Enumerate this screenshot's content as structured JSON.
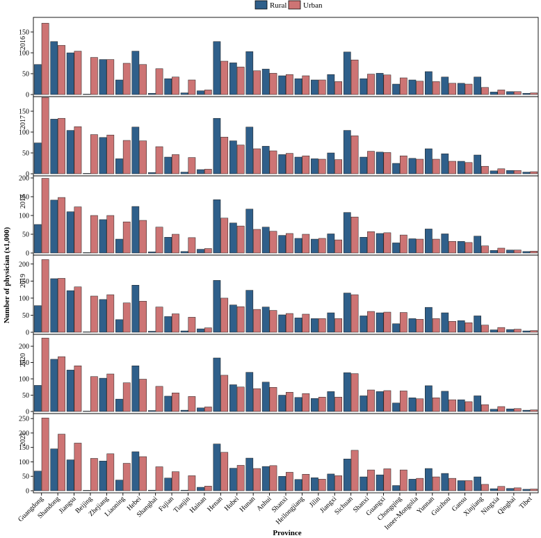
{
  "chart_data": {
    "type": "bar",
    "title": "",
    "xlabel": "Province",
    "ylabel": "Number of physician (x1,000)",
    "legend": {
      "position": "top-center",
      "entries": [
        "Rural",
        "Urban"
      ]
    },
    "colors": {
      "Rural": "#2f5f8a",
      "Urban": "#cd7474"
    },
    "categories": [
      "Guangdong",
      "Shandong",
      "Jiangsu",
      "Beijing",
      "Zhejiang",
      "Liaoning",
      "Hebei",
      "Shanghai",
      "Fujian",
      "Tianjin",
      "Hainan",
      "Henan",
      "Hubei",
      "Hunan",
      "Anhui",
      "Shanxi",
      "Heilongjiang",
      "Jilin",
      "Jiangxi",
      "Sichuan",
      "Shanxi",
      "Guangxi",
      "Chongqing",
      "Inner-Mongolia",
      "Yunnan",
      "Guizhou",
      "Gansu",
      "Xinjiang",
      "Ningxia",
      "Qinghai",
      "Tibet"
    ],
    "panels": [
      {
        "year": "2016",
        "ylim": [
          0,
          180
        ],
        "yticks": [
          0,
          50,
          100,
          150
        ],
        "series": [
          {
            "name": "Rural",
            "values": [
              72,
              127,
              100,
              1,
              84,
              35,
              104,
              3,
              38,
              4,
              9,
              127,
              76,
              103,
              61,
              45,
              38,
              35,
              48,
              102,
              38,
              51,
              25,
              35,
              55,
              42,
              27,
              42,
              6,
              7,
              3
            ]
          },
          {
            "name": "Urban",
            "values": [
              171,
              118,
              104,
              89,
              84,
              75,
              72,
              62,
              42,
              35,
              11,
              80,
              66,
              57,
              51,
              48,
              45,
              35,
              31,
              83,
              49,
              47,
              40,
              32,
              31,
              27,
              25,
              17,
              11,
              7,
              4
            ]
          }
        ]
      },
      {
        "year": "2017",
        "ylim": [
          0,
          180
        ],
        "yticks": [
          0,
          50,
          100,
          150
        ],
        "series": [
          {
            "name": "Rural",
            "values": [
              74,
              131,
              104,
              1,
              87,
              36,
              112,
              3,
              40,
              4,
              10,
              133,
              79,
              112,
              66,
              46,
              40,
              36,
              50,
              104,
              40,
              52,
              25,
              37,
              60,
              48,
              30,
              45,
              7,
              8,
              4
            ]
          },
          {
            "name": "Urban",
            "values": [
              183,
              133,
              113,
              94,
              93,
              80,
              79,
              65,
              46,
              39,
              11,
              88,
              69,
              60,
              55,
              49,
              43,
              35,
              34,
              91,
              54,
              51,
              43,
              35,
              35,
              30,
              27,
              18,
              12,
              8,
              5
            ]
          }
        ]
      },
      {
        "year": "2018",
        "ylim": [
          0,
          200
        ],
        "yticks": [
          0,
          50,
          100,
          150,
          200
        ],
        "series": [
          {
            "name": "Rural",
            "values": [
              76,
              141,
              110,
              1,
              89,
              37,
              124,
              3,
              42,
              4,
              10,
              142,
              80,
              117,
              69,
              47,
              39,
              37,
              51,
              108,
              42,
              52,
              27,
              38,
              64,
              51,
              31,
              45,
              7,
              8,
              4
            ]
          },
          {
            "name": "Urban",
            "values": [
              199,
              148,
              123,
              100,
              100,
              83,
              87,
              69,
              50,
              41,
              12,
              93,
              72,
              63,
              58,
              52,
              50,
              39,
              35,
              96,
              57,
              54,
              48,
              37,
              37,
              31,
              28,
              19,
              13,
              8,
              5
            ]
          }
        ]
      },
      {
        "year": "2019",
        "ylim": [
          0,
          220
        ],
        "yticks": [
          0,
          50,
          100,
          150,
          200
        ],
        "series": [
          {
            "name": "Rural",
            "values": [
              78,
              157,
              122,
              1,
              96,
              37,
              138,
              3,
              46,
              4,
              10,
              152,
              80,
              123,
              74,
              51,
              42,
              40,
              57,
              115,
              48,
              57,
              25,
              40,
              73,
              57,
              34,
              48,
              7,
              8,
              4
            ]
          },
          {
            "name": "Urban",
            "values": [
              213,
              158,
              133,
              106,
              110,
              86,
              91,
              74,
              54,
              44,
              13,
              100,
              75,
              67,
              64,
              55,
              53,
              40,
              40,
              110,
              61,
              59,
              58,
              38,
              40,
              32,
              28,
              21,
              14,
              9,
              5
            ]
          }
        ]
      },
      {
        "year": "2020",
        "ylim": [
          0,
          230
        ],
        "yticks": [
          0,
          50,
          100,
          150,
          200
        ],
        "series": [
          {
            "name": "Rural",
            "values": [
              80,
              160,
              127,
              1,
              102,
              38,
              140,
              3,
              47,
              4,
              11,
              164,
              82,
              120,
              90,
              50,
              43,
              40,
              61,
              119,
              48,
              61,
              26,
              42,
              79,
              62,
              36,
              48,
              7,
              8,
              4
            ]
          },
          {
            "name": "Urban",
            "values": [
              225,
              168,
              140,
              107,
              115,
              88,
              99,
              77,
              57,
              46,
              14,
              111,
              75,
              70,
              74,
              59,
              55,
              44,
              44,
              116,
              66,
              64,
              63,
              39,
              42,
              36,
              30,
              21,
              15,
              9,
              5
            ]
          }
        ]
      },
      {
        "year": "2021",
        "ylim": [
          0,
          260
        ],
        "yticks": [
          0,
          50,
          100,
          150,
          200,
          250
        ],
        "series": [
          {
            "name": "Rural",
            "values": [
              68,
              145,
              107,
              1,
              103,
              37,
              135,
              2,
              44,
              2,
              12,
              162,
              78,
              113,
              84,
              50,
              39,
              45,
              58,
              110,
              48,
              55,
              18,
              40,
              77,
              60,
              35,
              48,
              7,
              8,
              5
            ]
          },
          {
            "name": "Urban",
            "values": [
              252,
              196,
              165,
              112,
              128,
              95,
              118,
              83,
              66,
              52,
              16,
              133,
              88,
              77,
              87,
              64,
              57,
              40,
              52,
              140,
              72,
              76,
              72,
              43,
              48,
              43,
              35,
              22,
              15,
              10,
              6
            ]
          }
        ]
      }
    ]
  }
}
